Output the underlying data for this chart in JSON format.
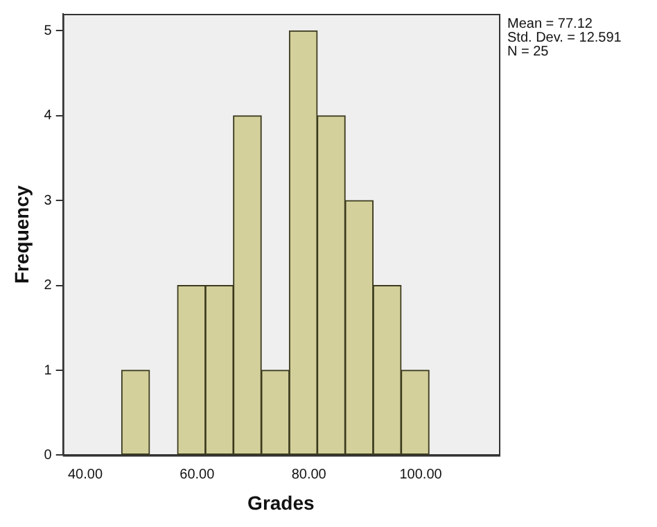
{
  "chart_data": {
    "type": "histogram",
    "xlabel": "Grades",
    "ylabel": "Frequency",
    "bins": [
      46.5,
      51.5,
      56.5,
      61.5,
      66.5,
      71.5,
      76.5,
      81.5,
      86.5,
      91.5,
      96.5,
      101.5
    ],
    "values": [
      1,
      0,
      2,
      2,
      4,
      1,
      5,
      4,
      3,
      2,
      1
    ],
    "color": "#d4d09c",
    "xlim": [
      36,
      114
    ],
    "xticks": [
      {
        "value": 40,
        "label": "40.00"
      },
      {
        "value": 60,
        "label": "60.00"
      },
      {
        "value": 80,
        "label": "80.00"
      },
      {
        "value": 100,
        "label": "100.00"
      }
    ],
    "ylim": [
      0,
      5.2
    ],
    "yticks": [
      0,
      1,
      2,
      3,
      4,
      5
    ],
    "grid": false,
    "legend": false,
    "annotations": [
      "Mean = 77.12",
      "Std. Dev. = 12.591",
      "N = 25"
    ]
  }
}
